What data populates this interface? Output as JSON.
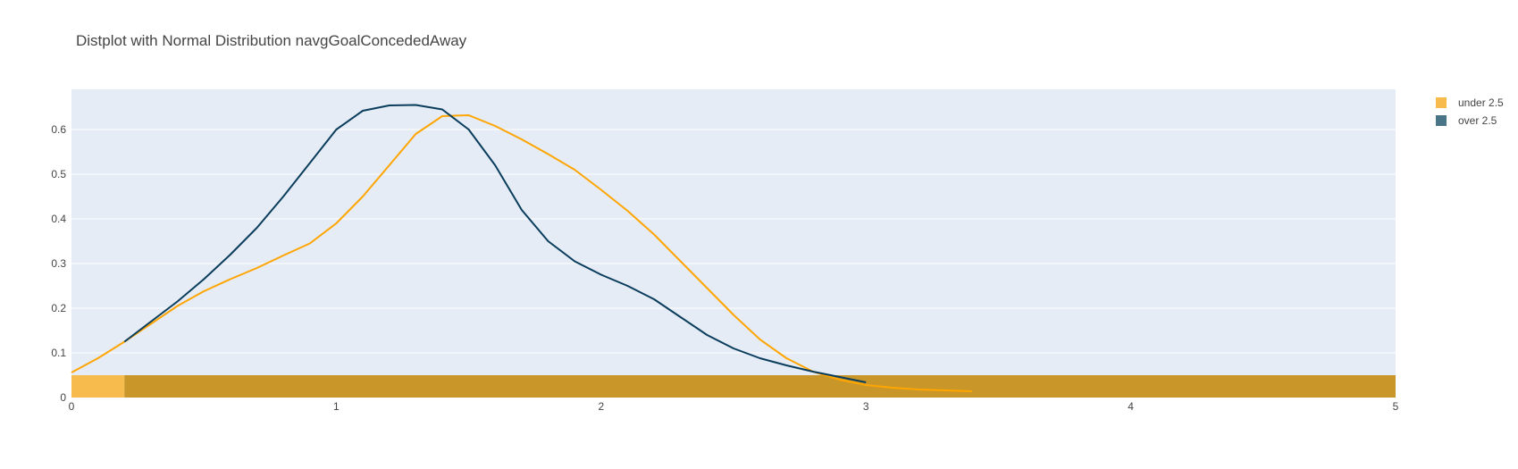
{
  "chart_data": {
    "type": "area",
    "title": "Distplot with Normal Distribution  navgGoalConcededAway",
    "xlabel": "",
    "ylabel": "",
    "xlim": [
      0,
      5
    ],
    "ylim": [
      0,
      0.69
    ],
    "x_ticks": [
      "0",
      "1",
      "2",
      "3",
      "4",
      "5"
    ],
    "y_ticks": [
      "0",
      "0.1",
      "0.2",
      "0.3",
      "0.4",
      "0.5",
      "0.6"
    ],
    "grid": true,
    "legend_position": "top-right",
    "histogram": {
      "bins": [
        [
          0,
          0.2
        ],
        [
          0.2,
          5
        ]
      ],
      "height": 0.05,
      "overlap_color": "#c9962a"
    },
    "series": [
      {
        "name": "under 2.5",
        "color": "#FFA500",
        "legend_color": "#f6bb4c",
        "curve": {
          "x": [
            0,
            0.1,
            0.2,
            0.3,
            0.4,
            0.5,
            0.6,
            0.7,
            0.8,
            0.9,
            1.0,
            1.1,
            1.2,
            1.3,
            1.4,
            1.5,
            1.6,
            1.7,
            1.8,
            1.9,
            2.0,
            2.1,
            2.2,
            2.3,
            2.4,
            2.5,
            2.6,
            2.7,
            2.8,
            2.9,
            3.0,
            3.1,
            3.2,
            3.3,
            3.4
          ],
          "y": [
            0.056,
            0.088,
            0.125,
            0.165,
            0.205,
            0.238,
            0.265,
            0.29,
            0.318,
            0.345,
            0.39,
            0.45,
            0.52,
            0.59,
            0.63,
            0.632,
            0.608,
            0.578,
            0.545,
            0.51,
            0.465,
            0.418,
            0.365,
            0.305,
            0.245,
            0.185,
            0.13,
            0.088,
            0.058,
            0.04,
            0.028,
            0.022,
            0.018,
            0.016,
            0.014
          ]
        }
      },
      {
        "name": "over 2.5",
        "color": "#0a3d5c",
        "legend_color": "#4a7588",
        "curve": {
          "x": [
            0.2,
            0.3,
            0.4,
            0.5,
            0.6,
            0.7,
            0.8,
            0.9,
            1.0,
            1.1,
            1.2,
            1.3,
            1.4,
            1.5,
            1.6,
            1.7,
            1.8,
            1.9,
            2.0,
            2.1,
            2.2,
            2.3,
            2.4,
            2.5,
            2.6,
            2.7,
            2.8,
            2.9,
            3.0
          ],
          "y": [
            0.125,
            0.17,
            0.215,
            0.265,
            0.32,
            0.38,
            0.45,
            0.525,
            0.6,
            0.642,
            0.654,
            0.655,
            0.645,
            0.6,
            0.52,
            0.42,
            0.35,
            0.305,
            0.275,
            0.25,
            0.22,
            0.18,
            0.14,
            0.11,
            0.088,
            0.072,
            0.058,
            0.046,
            0.034
          ]
        }
      }
    ]
  }
}
